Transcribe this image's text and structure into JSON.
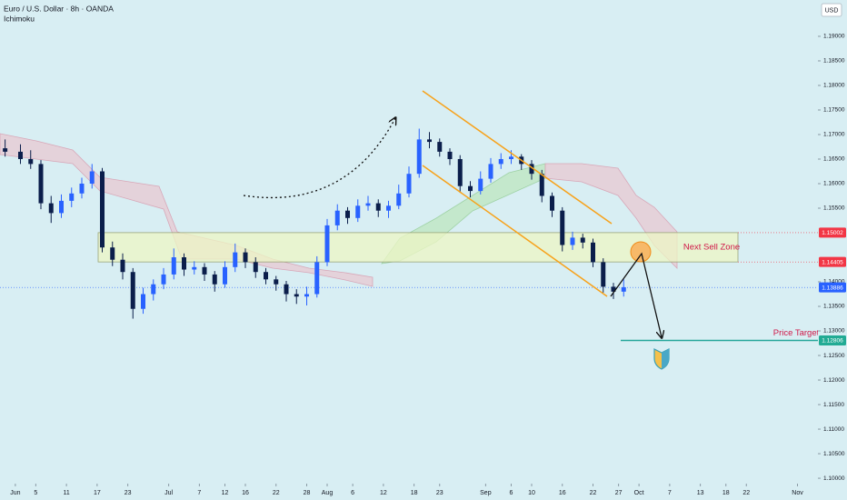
{
  "chart_data": {
    "type": "candlestick",
    "title": "Euro / U.S. Dollar · 8h · OANDA",
    "subtitle": "Ichimoku",
    "currency": "USD",
    "up_color": "#2962ff",
    "down_color": "#0b1e4b",
    "xlim": [
      "05-29",
      "11-05"
    ],
    "xticks": [
      {
        "value": "06-01",
        "label": "Jun"
      },
      {
        "value": "06-05",
        "label": "5"
      },
      {
        "value": "06-11",
        "label": "11"
      },
      {
        "value": "06-17",
        "label": "17"
      },
      {
        "value": "06-23",
        "label": "23"
      },
      {
        "value": "07-01",
        "label": "Jul"
      },
      {
        "value": "07-07",
        "label": "7"
      },
      {
        "value": "07-12",
        "label": "12"
      },
      {
        "value": "07-16",
        "label": "16"
      },
      {
        "value": "07-22",
        "label": "22"
      },
      {
        "value": "07-28",
        "label": "28"
      },
      {
        "value": "08-01",
        "label": "Aug"
      },
      {
        "value": "08-06",
        "label": "6"
      },
      {
        "value": "08-12",
        "label": "12"
      },
      {
        "value": "08-18",
        "label": "18"
      },
      {
        "value": "08-23",
        "label": "23"
      },
      {
        "value": "09-01",
        "label": "Sep"
      },
      {
        "value": "09-06",
        "label": "6"
      },
      {
        "value": "09-10",
        "label": "10"
      },
      {
        "value": "09-16",
        "label": "16"
      },
      {
        "value": "09-22",
        "label": "22"
      },
      {
        "value": "09-27",
        "label": "27"
      },
      {
        "value": "10-01",
        "label": "Oct"
      },
      {
        "value": "10-07",
        "label": "7"
      },
      {
        "value": "10-13",
        "label": "13"
      },
      {
        "value": "10-18",
        "label": "18"
      },
      {
        "value": "10-22",
        "label": "22"
      },
      {
        "value": "11-01",
        "label": "Nov"
      }
    ],
    "ylim": [
      1.0989,
      1.1974
    ],
    "yticks": [
      {
        "value": 1.19,
        "label": "1.19000"
      },
      {
        "value": 1.185,
        "label": "1.18500"
      },
      {
        "value": 1.18,
        "label": "1.18000"
      },
      {
        "value": 1.175,
        "label": "1.17500"
      },
      {
        "value": 1.17,
        "label": "1.17000"
      },
      {
        "value": 1.165,
        "label": "1.16500"
      },
      {
        "value": 1.16,
        "label": "1.16000"
      },
      {
        "value": 1.155,
        "label": "1.15500"
      },
      {
        "value": 1.14,
        "label": "1.14000"
      },
      {
        "value": 1.135,
        "label": "1.13500"
      },
      {
        "value": 1.13,
        "label": "1.13000"
      },
      {
        "value": 1.125,
        "label": "1.12500"
      },
      {
        "value": 1.12,
        "label": "1.12000"
      },
      {
        "value": 1.115,
        "label": "1.11500"
      },
      {
        "value": 1.11,
        "label": "1.11000"
      },
      {
        "value": 1.105,
        "label": "1.10500"
      },
      {
        "value": 1.1,
        "label": "1.10000"
      }
    ],
    "price_labels": [
      {
        "value": 1.15002,
        "label": "1.15002",
        "color": "#f23645"
      },
      {
        "value": 1.14405,
        "label": "1.14405",
        "color": "#f23645"
      },
      {
        "value": 1.13886,
        "label": "1.13886",
        "color": "#2962ff"
      },
      {
        "value": 1.12806,
        "label": "1.12806",
        "color": "#22ab94"
      }
    ],
    "sell_zone_label": "Next Sell Zone",
    "target_label": "Price Target",
    "candles": [
      {
        "x": "05-30",
        "open": 1.1672,
        "high": 1.169,
        "low": 1.1655,
        "close": 1.1665
      },
      {
        "x": "06-02",
        "open": 1.1665,
        "high": 1.168,
        "low": 1.164,
        "close": 1.165
      },
      {
        "x": "06-04",
        "open": 1.165,
        "high": 1.1668,
        "low": 1.163,
        "close": 1.164
      },
      {
        "x": "06-06",
        "open": 1.164,
        "high": 1.1648,
        "low": 1.1548,
        "close": 1.156
      },
      {
        "x": "06-08",
        "open": 1.156,
        "high": 1.1575,
        "low": 1.152,
        "close": 1.154
      },
      {
        "x": "06-10",
        "open": 1.154,
        "high": 1.1578,
        "low": 1.153,
        "close": 1.1565
      },
      {
        "x": "06-12",
        "open": 1.1565,
        "high": 1.1592,
        "low": 1.1552,
        "close": 1.158
      },
      {
        "x": "06-14",
        "open": 1.158,
        "high": 1.1612,
        "low": 1.157,
        "close": 1.16
      },
      {
        "x": "06-16",
        "open": 1.16,
        "high": 1.164,
        "low": 1.159,
        "close": 1.1625
      },
      {
        "x": "06-18",
        "open": 1.1625,
        "high": 1.1632,
        "low": 1.146,
        "close": 1.147
      },
      {
        "x": "06-20",
        "open": 1.147,
        "high": 1.1482,
        "low": 1.1432,
        "close": 1.1445
      },
      {
        "x": "06-22",
        "open": 1.1445,
        "high": 1.1458,
        "low": 1.1405,
        "close": 1.142
      },
      {
        "x": "06-24",
        "open": 1.142,
        "high": 1.1428,
        "low": 1.1325,
        "close": 1.1345
      },
      {
        "x": "06-26",
        "open": 1.1345,
        "high": 1.1388,
        "low": 1.1335,
        "close": 1.1375
      },
      {
        "x": "06-28",
        "open": 1.1375,
        "high": 1.1405,
        "low": 1.1362,
        "close": 1.1395
      },
      {
        "x": "06-30",
        "open": 1.1395,
        "high": 1.1428,
        "low": 1.1385,
        "close": 1.1415
      },
      {
        "x": "07-02",
        "open": 1.1415,
        "high": 1.1468,
        "low": 1.1405,
        "close": 1.145
      },
      {
        "x": "07-04",
        "open": 1.145,
        "high": 1.1458,
        "low": 1.1412,
        "close": 1.1425
      },
      {
        "x": "07-06",
        "open": 1.1425,
        "high": 1.1442,
        "low": 1.1415,
        "close": 1.143
      },
      {
        "x": "07-08",
        "open": 1.143,
        "high": 1.1438,
        "low": 1.1402,
        "close": 1.1415
      },
      {
        "x": "07-10",
        "open": 1.1415,
        "high": 1.1422,
        "low": 1.138,
        "close": 1.1395
      },
      {
        "x": "07-12",
        "open": 1.1395,
        "high": 1.1442,
        "low": 1.1388,
        "close": 1.143
      },
      {
        "x": "07-14",
        "open": 1.143,
        "high": 1.1478,
        "low": 1.142,
        "close": 1.146
      },
      {
        "x": "07-16",
        "open": 1.146,
        "high": 1.1468,
        "low": 1.1428,
        "close": 1.144
      },
      {
        "x": "07-18",
        "open": 1.144,
        "high": 1.145,
        "low": 1.1408,
        "close": 1.142
      },
      {
        "x": "07-20",
        "open": 1.142,
        "high": 1.1428,
        "low": 1.1395,
        "close": 1.1405
      },
      {
        "x": "07-22",
        "open": 1.1405,
        "high": 1.1412,
        "low": 1.1382,
        "close": 1.1395
      },
      {
        "x": "07-24",
        "open": 1.1395,
        "high": 1.1402,
        "low": 1.136,
        "close": 1.1375
      },
      {
        "x": "07-26",
        "open": 1.1375,
        "high": 1.1385,
        "low": 1.1355,
        "close": 1.137
      },
      {
        "x": "07-28",
        "open": 1.137,
        "high": 1.139,
        "low": 1.1352,
        "close": 1.1375
      },
      {
        "x": "07-30",
        "open": 1.1375,
        "high": 1.1452,
        "low": 1.1368,
        "close": 1.144
      },
      {
        "x": "08-01",
        "open": 1.144,
        "high": 1.1528,
        "low": 1.1432,
        "close": 1.1515
      },
      {
        "x": "08-03",
        "open": 1.1515,
        "high": 1.1558,
        "low": 1.1505,
        "close": 1.1545
      },
      {
        "x": "08-05",
        "open": 1.1545,
        "high": 1.1552,
        "low": 1.1518,
        "close": 1.153
      },
      {
        "x": "08-07",
        "open": 1.153,
        "high": 1.1568,
        "low": 1.1522,
        "close": 1.1555
      },
      {
        "x": "08-09",
        "open": 1.1555,
        "high": 1.1575,
        "low": 1.1545,
        "close": 1.156
      },
      {
        "x": "08-11",
        "open": 1.156,
        "high": 1.1568,
        "low": 1.1532,
        "close": 1.1545
      },
      {
        "x": "08-13",
        "open": 1.1545,
        "high": 1.1565,
        "low": 1.153,
        "close": 1.1555
      },
      {
        "x": "08-15",
        "open": 1.1555,
        "high": 1.1598,
        "low": 1.1548,
        "close": 1.158
      },
      {
        "x": "08-17",
        "open": 1.158,
        "high": 1.1635,
        "low": 1.1572,
        "close": 1.162
      },
      {
        "x": "08-19",
        "open": 1.162,
        "high": 1.1712,
        "low": 1.1612,
        "close": 1.169
      },
      {
        "x": "08-21",
        "open": 1.169,
        "high": 1.1705,
        "low": 1.1672,
        "close": 1.1685
      },
      {
        "x": "08-23",
        "open": 1.1685,
        "high": 1.1692,
        "low": 1.1655,
        "close": 1.1665
      },
      {
        "x": "08-25",
        "open": 1.1665,
        "high": 1.1672,
        "low": 1.1638,
        "close": 1.165
      },
      {
        "x": "08-27",
        "open": 1.165,
        "high": 1.1658,
        "low": 1.1582,
        "close": 1.1595
      },
      {
        "x": "08-29",
        "open": 1.1595,
        "high": 1.1605,
        "low": 1.1572,
        "close": 1.1585
      },
      {
        "x": "08-31",
        "open": 1.1585,
        "high": 1.1625,
        "low": 1.1578,
        "close": 1.161
      },
      {
        "x": "09-02",
        "open": 1.161,
        "high": 1.1652,
        "low": 1.1602,
        "close": 1.164
      },
      {
        "x": "09-04",
        "open": 1.164,
        "high": 1.1662,
        "low": 1.163,
        "close": 1.165
      },
      {
        "x": "09-06",
        "open": 1.165,
        "high": 1.1668,
        "low": 1.164,
        "close": 1.1655
      },
      {
        "x": "09-08",
        "open": 1.1655,
        "high": 1.166,
        "low": 1.1628,
        "close": 1.164
      },
      {
        "x": "09-10",
        "open": 1.164,
        "high": 1.1648,
        "low": 1.1608,
        "close": 1.162
      },
      {
        "x": "09-12",
        "open": 1.162,
        "high": 1.1628,
        "low": 1.1562,
        "close": 1.1575
      },
      {
        "x": "09-14",
        "open": 1.1575,
        "high": 1.1582,
        "low": 1.1532,
        "close": 1.1545
      },
      {
        "x": "09-16",
        "open": 1.1545,
        "high": 1.1552,
        "low": 1.1462,
        "close": 1.1475
      },
      {
        "x": "09-18",
        "open": 1.1475,
        "high": 1.1502,
        "low": 1.1465,
        "close": 1.149
      },
      {
        "x": "09-20",
        "open": 1.149,
        "high": 1.1498,
        "low": 1.1468,
        "close": 1.148
      },
      {
        "x": "09-22",
        "open": 1.148,
        "high": 1.1488,
        "low": 1.143,
        "close": 1.144
      },
      {
        "x": "09-24",
        "open": 1.144,
        "high": 1.1448,
        "low": 1.1378,
        "close": 1.139
      },
      {
        "x": "09-26",
        "open": 1.139,
        "high": 1.1398,
        "low": 1.1365,
        "close": 1.138
      },
      {
        "x": "09-28",
        "open": 1.138,
        "high": 1.1405,
        "low": 1.137,
        "close": 1.1389
      }
    ]
  }
}
